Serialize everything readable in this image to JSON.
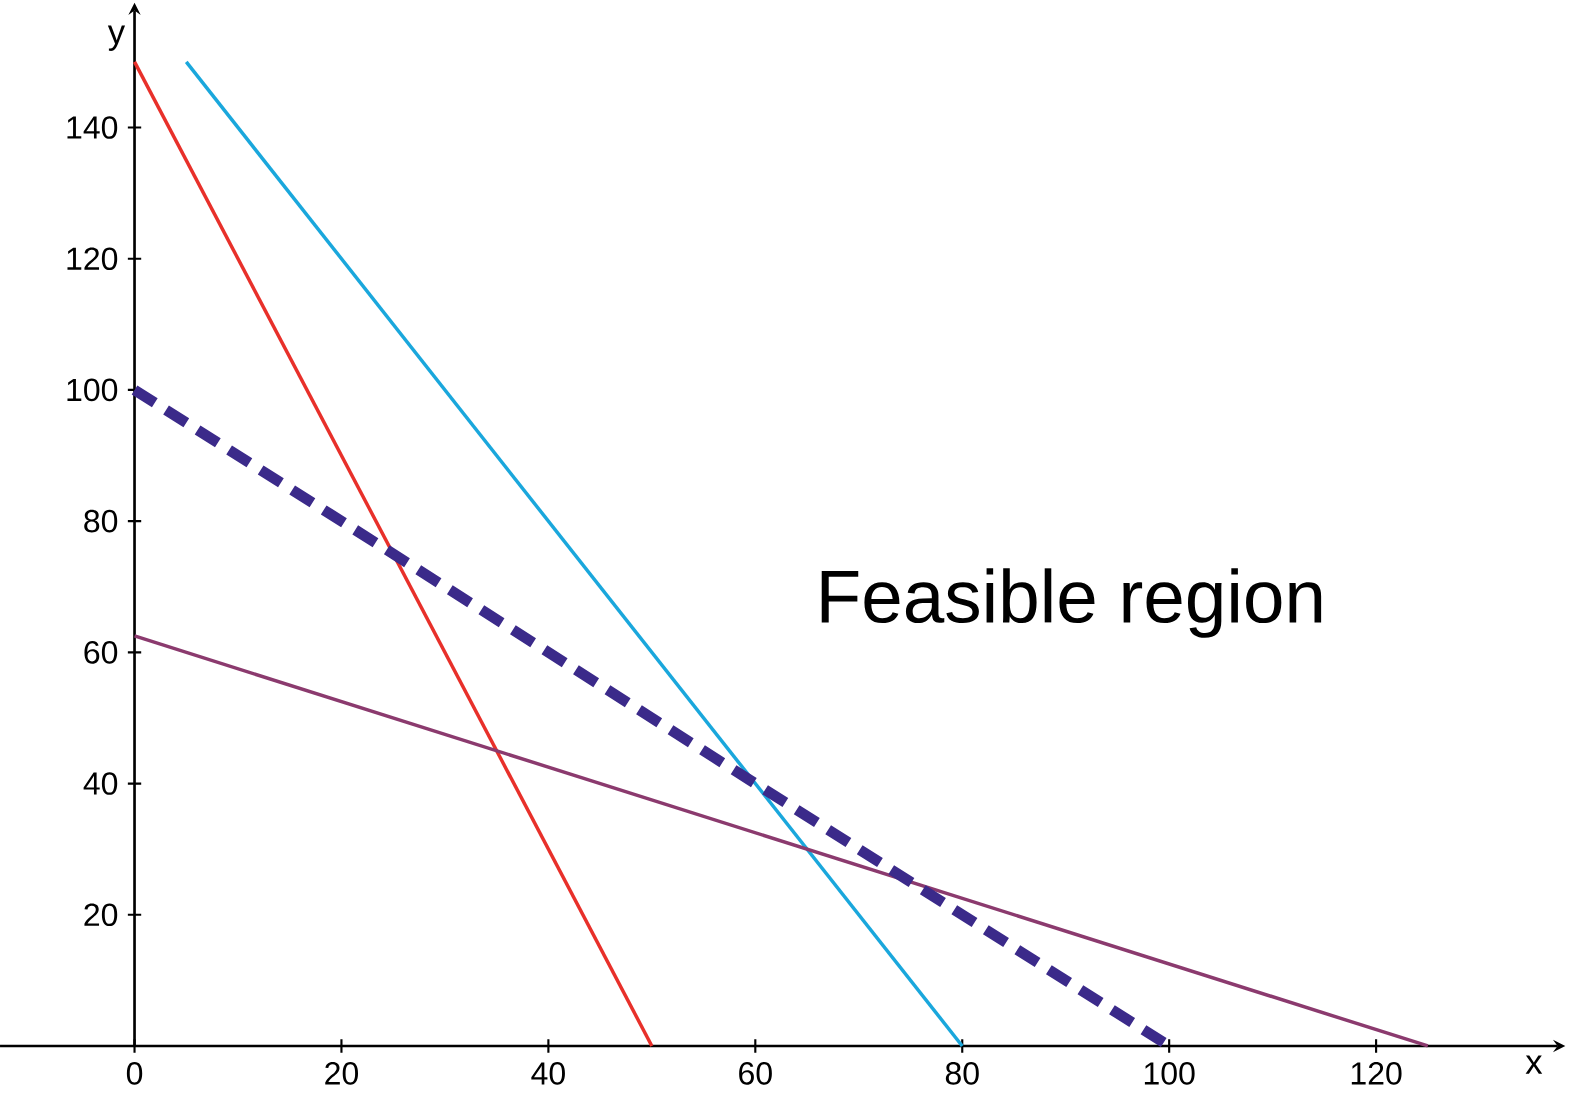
{
  "chart_data": {
    "type": "line",
    "xlabel": "x",
    "ylabel": "y",
    "xlim": [
      -13,
      137
    ],
    "ylim": [
      0,
      157
    ],
    "xticks": [
      0,
      20,
      40,
      60,
      80,
      100,
      120
    ],
    "yticks": [
      20,
      40,
      60,
      80,
      100,
      120,
      140
    ],
    "grid": false,
    "marker": "none",
    "series": [
      {
        "x": [
          0,
          50
        ],
        "values": [
          150,
          0
        ],
        "color": "#e8302a",
        "line_style": "solid"
      },
      {
        "x": [
          5,
          80
        ],
        "values": [
          150,
          0
        ],
        "color": "#1aa7dc",
        "line_style": "solid"
      },
      {
        "x": [
          0,
          125
        ],
        "values": [
          62.5,
          0
        ],
        "color": "#8b3a6e",
        "line_style": "solid"
      },
      {
        "x": [
          0,
          100
        ],
        "values": [
          100,
          0
        ],
        "color": "#3b2a8a",
        "line_style": "dashed"
      }
    ],
    "annotations": [
      "Feasible region"
    ]
  }
}
